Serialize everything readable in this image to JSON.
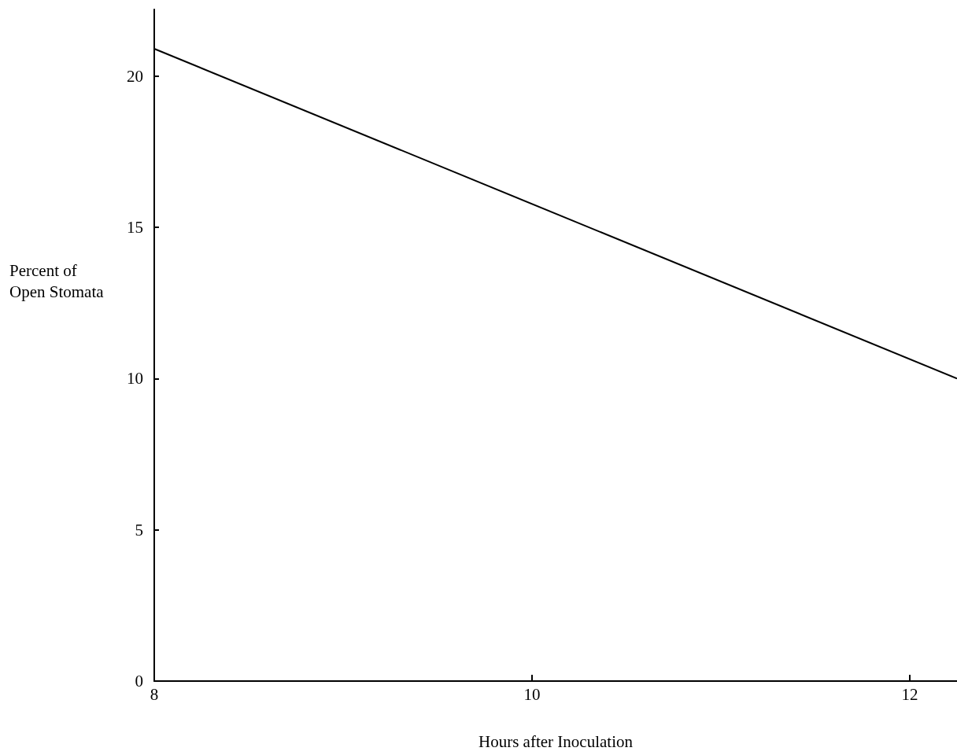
{
  "chart_data": {
    "type": "line",
    "xlabel": "Hours after Inoculation",
    "ylabel": "Percent of Open Stomata",
    "x": [
      8,
      12.25
    ],
    "series": [
      {
        "color": "#000000",
        "values": [
          20.9,
          10.0
        ]
      }
    ],
    "xlim": [
      8,
      12.25
    ],
    "xticks": [
      8,
      10,
      12
    ],
    "ylim": [
      0,
      22.2
    ],
    "yticks": [
      0,
      5,
      10,
      15,
      20
    ],
    "grid": false,
    "marker": "none",
    "line_style": "solid"
  }
}
